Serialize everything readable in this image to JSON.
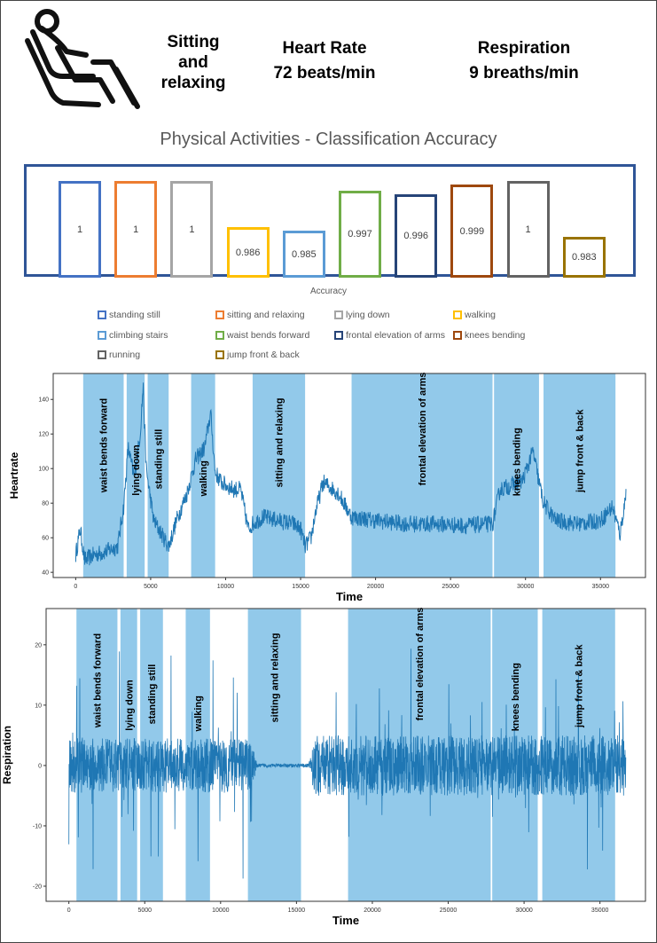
{
  "header": {
    "activity_line1": "Sitting",
    "activity_line2": "and",
    "activity_line3": "relaxing",
    "heart_rate_title": "Heart Rate",
    "heart_rate_value": "72 beats/min",
    "respiration_title": "Respiration",
    "respiration_value": "9 breaths/min",
    "icon": "person-sitting-in-chair-icon"
  },
  "chart_data": [
    {
      "type": "bar",
      "title": "Physical Activities - Classification Accuracy",
      "xlabel": "Accuracy",
      "categories": [
        "standing still",
        "sitting and relaxing",
        "lying down",
        "walking",
        "climbing stairs",
        "waist bends forward",
        "frontal elevation of arms",
        "knees bending",
        "running",
        "jump front & back"
      ],
      "values": [
        1,
        1,
        1,
        0.986,
        0.985,
        0.997,
        0.996,
        0.999,
        1,
        0.983
      ],
      "value_labels": [
        "1",
        "1",
        "1",
        "0.986",
        "0.985",
        "0.997",
        "0.996",
        "0.999",
        "1",
        "0.983"
      ],
      "colors": [
        "#4472c4",
        "#ed7d31",
        "#a5a5a5",
        "#ffc000",
        "#5b9bd5",
        "#70ad47",
        "#264478",
        "#9e480e",
        "#636363",
        "#997300"
      ],
      "ylim": [
        0.975,
        1.0
      ],
      "legend_position": "bottom"
    },
    {
      "type": "line",
      "xlabel": "Time",
      "ylabel": "Heartrate",
      "xlim": [
        -1500,
        38000
      ],
      "ylim": [
        37,
        155
      ],
      "xticks": [
        0,
        5000,
        10000,
        15000,
        20000,
        25000,
        30000,
        35000
      ],
      "yticks": [
        40,
        60,
        80,
        100,
        120,
        140
      ],
      "line_color": "#1f77b4",
      "band_color": "#92c9ea",
      "segments": [
        {
          "label": "waist bends forward",
          "start": 500,
          "end": 3200
        },
        {
          "label": "lying down",
          "start": 3400,
          "end": 4600
        },
        {
          "label": "standing still",
          "start": 4800,
          "end": 6200
        },
        {
          "label": "walking",
          "start": 7700,
          "end": 9300
        },
        {
          "label": "sitting and relaxing",
          "start": 11800,
          "end": 15300
        },
        {
          "label": "frontal elevation of arms",
          "start": 18400,
          "end": 27800
        },
        {
          "label": "knees bending",
          "start": 27900,
          "end": 30900
        },
        {
          "label": "jump front & back",
          "start": 31200,
          "end": 36000
        }
      ],
      "series_profile": {
        "x": [
          0,
          300,
          600,
          1200,
          2000,
          2800,
          3200,
          3500,
          3900,
          4300,
          4500,
          4700,
          5200,
          6200,
          6800,
          7400,
          8000,
          8600,
          9000,
          9300,
          9700,
          10500,
          11000,
          11500,
          11800,
          12500,
          13500,
          14500,
          15000,
          15300,
          15700,
          16000,
          16500,
          17500,
          18400,
          20000,
          22000,
          24000,
          26000,
          27800,
          28300,
          29000,
          29800,
          30500,
          30900,
          31200,
          32000,
          33500,
          35000,
          35800,
          36300,
          36700
        ],
        "y": [
          50,
          65,
          47,
          50,
          52,
          55,
          78,
          112,
          95,
          120,
          148,
          100,
          70,
          55,
          72,
          85,
          105,
          112,
          132,
          98,
          92,
          88,
          88,
          65,
          68,
          72,
          70,
          68,
          65,
          55,
          60,
          75,
          92,
          86,
          72,
          70,
          68,
          68,
          67,
          68,
          88,
          90,
          93,
          110,
          92,
          80,
          70,
          68,
          70,
          78,
          62,
          85
        ],
        "noise": 5
      }
    },
    {
      "type": "line",
      "xlabel": "Time",
      "ylabel": "Respiration",
      "xlim": [
        -1500,
        38000
      ],
      "ylim": [
        -22.5,
        26
      ],
      "xticks": [
        0,
        5000,
        10000,
        15000,
        20000,
        25000,
        30000,
        35000
      ],
      "yticks": [
        -20,
        -10,
        0,
        10,
        20
      ],
      "line_color": "#1f77b4",
      "band_color": "#92c9ea",
      "segments": [
        {
          "label": "waist bends forward",
          "start": 500,
          "end": 3200
        },
        {
          "label": "lying down",
          "start": 3400,
          "end": 4500
        },
        {
          "label": "standing still",
          "start": 4700,
          "end": 6200
        },
        {
          "label": "walking",
          "start": 7700,
          "end": 9300
        },
        {
          "label": "sitting and relaxing",
          "start": 11800,
          "end": 15300
        },
        {
          "label": "frontal elevation of arms",
          "start": 18400,
          "end": 27800
        },
        {
          "label": "knees bending",
          "start": 27900,
          "end": 30900
        },
        {
          "label": "jump front & back",
          "start": 31200,
          "end": 36000
        }
      ],
      "series_profile": {
        "x": [
          0,
          12000,
          12400,
          15800,
          16200,
          36700
        ],
        "amplitude": [
          4.5,
          4.5,
          0.3,
          0.3,
          5,
          5
        ],
        "spike_max": 22
      }
    }
  ],
  "legend_text_color": "#595959"
}
